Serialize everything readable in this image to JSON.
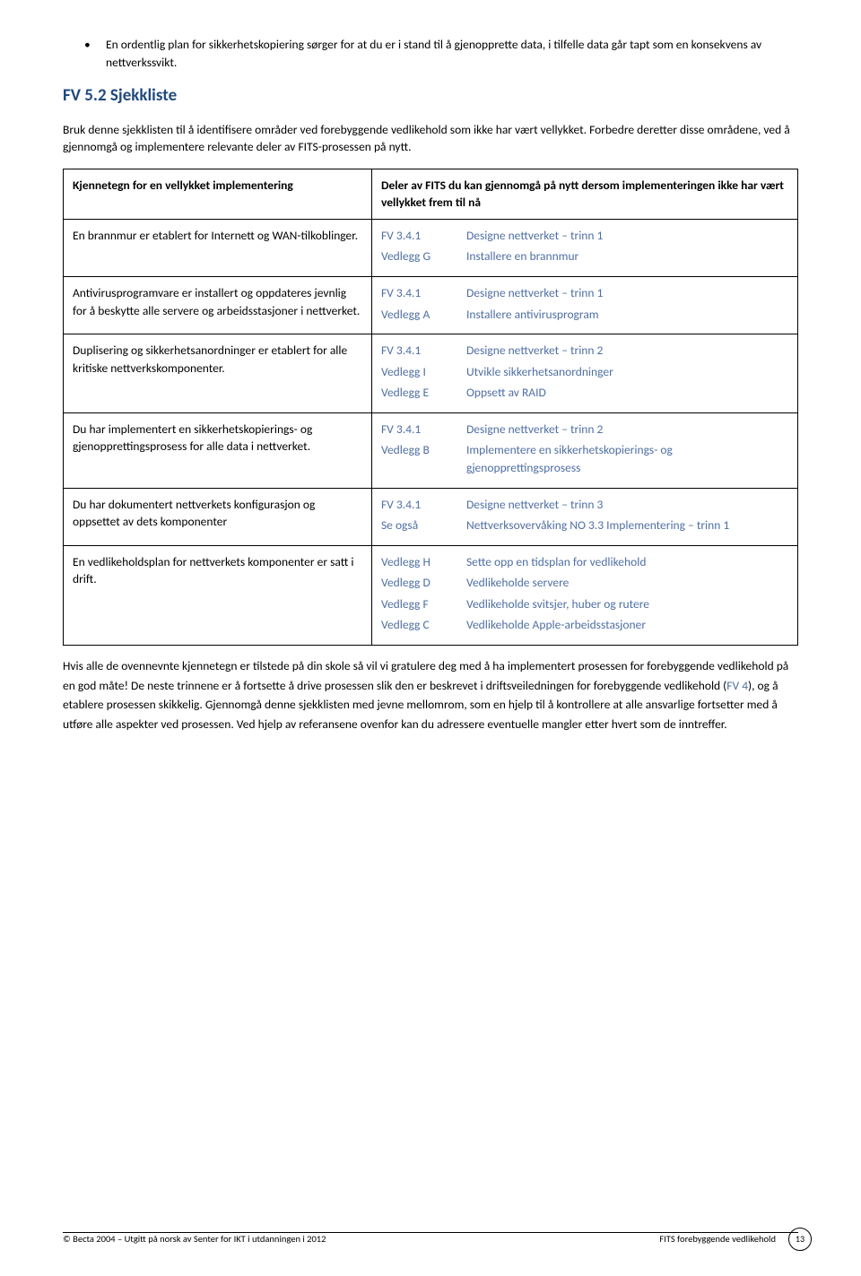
{
  "bullet": {
    "mark": "•",
    "text": "En ordentlig plan for sikkerhetskopiering sørger for at du er i stand til å gjenopprette data, i tilfelle data går tapt som en konsekvens av nettverkssvikt."
  },
  "heading": "FV 5.2 Sjekkliste",
  "intro": "Bruk denne sjekklisten til å identifisere områder ved forebyggende vedlikehold som ikke har vært vellykket. Forbedre deretter disse områdene, ved å gjennomgå og implementere relevante deler av FITS-prosessen på nytt.",
  "table": {
    "header_left": "Kjennetegn for en vellykket implementering",
    "header_right": "Deler av FITS du kan gjennomgå på nytt dersom implementeringen ikke har vært vellykket frem til nå",
    "rows": [
      {
        "left": "En brannmur er etablert for Internett og WAN-tilkoblinger.",
        "refs": [
          {
            "code": "FV 3.4.1",
            "desc": "Designe nettverket – trinn 1"
          },
          {
            "code": "Vedlegg G",
            "desc": "Installere en brannmur"
          }
        ]
      },
      {
        "left": "Antivirusprogramvare er installert og oppdateres jevnlig for å beskytte alle servere og arbeidsstasjoner i nettverket.",
        "refs": [
          {
            "code": "FV 3.4.1",
            "desc": "Designe nettverket – trinn 1"
          },
          {
            "code": "Vedlegg A",
            "desc": "Installere antivirusprogram"
          }
        ]
      },
      {
        "left": "Duplisering og sikkerhetsanordninger er etablert for alle kritiske nettverkskomponenter.",
        "refs": [
          {
            "code": "FV 3.4.1",
            "desc": "Designe nettverket – trinn 2"
          },
          {
            "code": "Vedlegg I",
            "desc": "Utvikle sikkerhetsanordninger"
          },
          {
            "code": "Vedlegg E",
            "desc": " Oppsett av RAID"
          }
        ]
      },
      {
        "left": "Du har implementert en sikkerhetskopierings- og gjenopprettingsprosess for alle data i nettverket.",
        "refs": [
          {
            "code": "FV 3.4.1",
            "desc": "Designe nettverket – trinn 2"
          },
          {
            "code": "Vedlegg B",
            "desc": "Implementere en sikkerhetskopierings- og gjenopprettingsprosess"
          }
        ]
      },
      {
        "left": "Du har dokumentert nettverkets konfigurasjon og oppsettet av dets komponenter",
        "refs": [
          {
            "code": "FV 3.4.1",
            "desc": "Designe nettverket – trinn 3"
          },
          {
            "code": "Se også",
            "desc": "Nettverksovervåking NO 3.3 Implementering – trinn 1"
          }
        ]
      },
      {
        "left": "En vedlikeholdsplan for nettverkets komponenter er satt i drift.",
        "refs": [
          {
            "code": "Vedlegg H",
            "desc": "Sette opp en tidsplan for vedlikehold"
          },
          {
            "code": "Vedlegg D",
            "desc": "Vedlikeholde servere"
          },
          {
            "code": "Vedlegg F",
            "desc": "Vedlikeholde svitsjer, huber og rutere"
          },
          {
            "code": "Vedlegg C",
            "desc": "Vedlikeholde Apple-arbeidsstasjoner"
          }
        ]
      }
    ]
  },
  "outro": {
    "before_link": "Hvis alle de ovennevnte kjennetegn er tilstede på din skole så vil vi gratulere deg med å ha implementert prosessen for forebyggende vedlikehold på en god måte! De neste trinnene er å fortsette å drive prosessen slik den er beskrevet i driftsveiledningen for forebyggende vedlikehold (",
    "link": "FV 4",
    "after_link": "), og å etablere prosessen skikkelig. Gjennomgå denne sjekklisten med jevne mellomrom, som en hjelp til å kontrollere at alle ansvarlige fortsetter med å utføre alle aspekter ved prosessen. Ved hjelp av referansene ovenfor kan du adressere eventuelle mangler etter hvert som de inntreffer."
  },
  "footer": {
    "left": "© Becta 2004 – Utgitt på norsk av Senter for IKT i utdanningen i 2012",
    "right": "FITS forebyggende vedlikehold",
    "page": "13"
  }
}
